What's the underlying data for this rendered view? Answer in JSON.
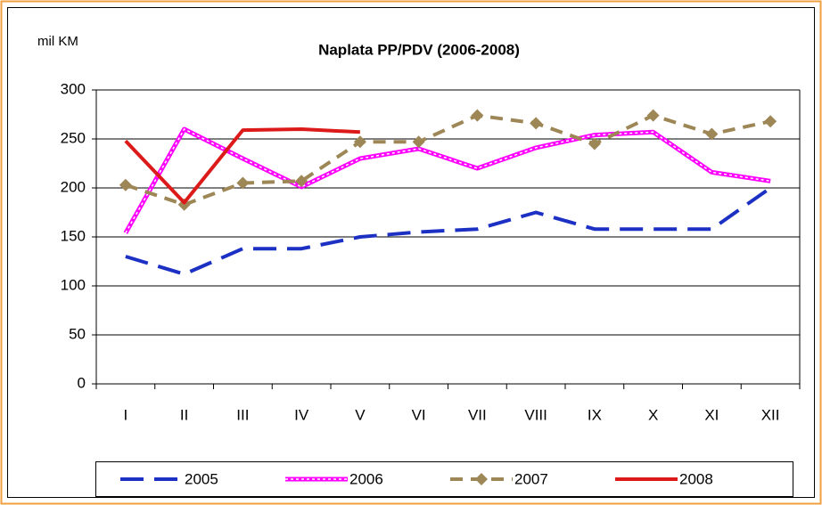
{
  "chart_data": {
    "type": "line",
    "title": "Naplata PP/PDV  (2006-2008)",
    "y_label": "mil KM",
    "categories": [
      "I",
      "II",
      "III",
      "IV",
      "V",
      "VI",
      "VII",
      "VIII",
      "IX",
      "X",
      "XI",
      "XII"
    ],
    "ylim": [
      0,
      300
    ],
    "yticks": [
      0,
      50,
      100,
      150,
      200,
      250,
      300
    ],
    "grid": true,
    "series": [
      {
        "name": "2005",
        "color": "#1c31c4",
        "line_style": "dashed",
        "values": [
          130,
          112,
          138,
          138,
          150,
          155,
          158,
          175,
          158,
          158,
          158,
          200
        ]
      },
      {
        "name": "2006",
        "color": "#ff00ff",
        "line_style": "dotted-double",
        "values": [
          154,
          260,
          230,
          201,
          230,
          240,
          220,
          241,
          254,
          257,
          216,
          207
        ]
      },
      {
        "name": "2007",
        "color": "#9e8757",
        "line_style": "dashed",
        "marker": "diamond",
        "values": [
          203,
          183,
          205,
          207,
          247,
          247,
          274,
          266,
          245,
          274,
          255,
          268
        ]
      },
      {
        "name": "2008",
        "color": "#dd1a1a",
        "line_style": "solid",
        "values": [
          248,
          185,
          259,
          260,
          257,
          null,
          null,
          null,
          null,
          null,
          null,
          null
        ]
      }
    ]
  }
}
